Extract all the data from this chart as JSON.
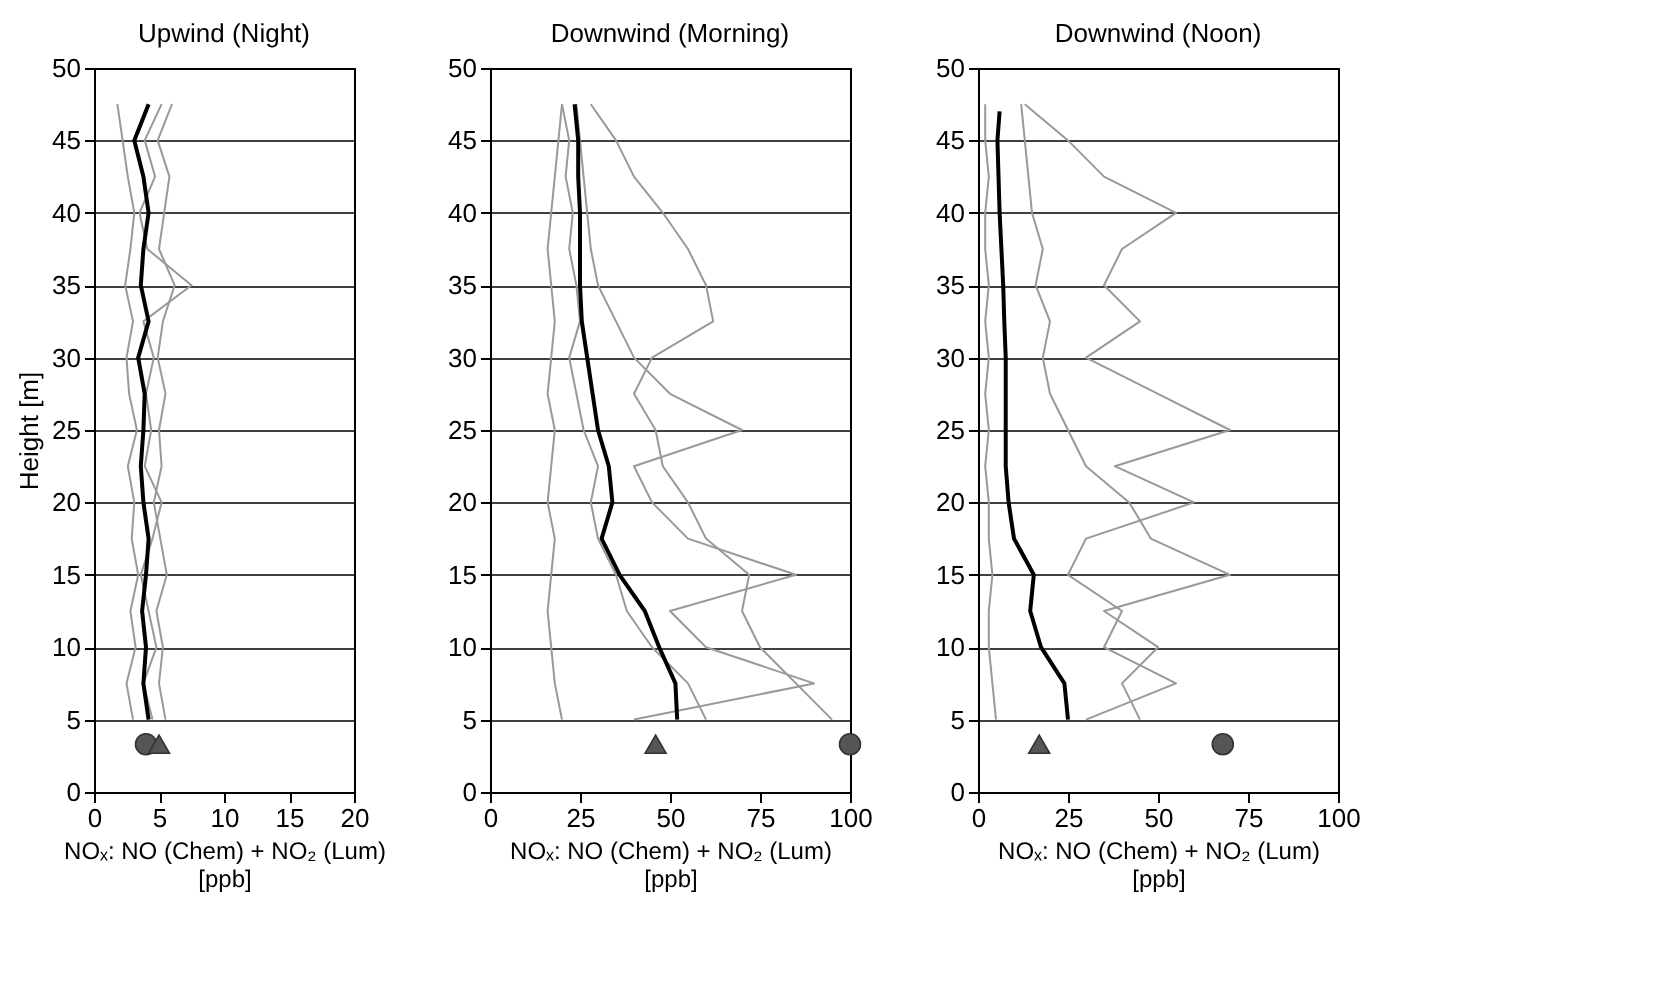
{
  "chart_data": [
    {
      "type": "line",
      "title": "Upwind (Night)",
      "xlabel": "NOₓ: NO (Chem) + NO₂ (Lum)\n[ppb]",
      "ylabel": "Height [m]",
      "xlim": [
        0,
        20
      ],
      "xticks": [
        0,
        5,
        10,
        15,
        20
      ],
      "ylim": [
        0,
        50
      ],
      "yticks": [
        0,
        5,
        10,
        15,
        20,
        25,
        30,
        35,
        40,
        45,
        50
      ],
      "grid": "y",
      "series": [
        {
          "color": "#999999",
          "x": [
            3.0,
            2.5,
            3.2,
            2.8,
            3.4,
            2.9,
            3.1,
            2.6,
            3.3,
            2.7,
            2.5,
            3.0,
            2.4,
            2.8,
            3.1,
            2.6,
            2.2,
            1.8
          ],
          "values": [
            5,
            7.5,
            10,
            12.5,
            15,
            17.5,
            20,
            22.5,
            25,
            27.5,
            30,
            32.5,
            35,
            37.5,
            40,
            42.5,
            45,
            47.5
          ]
        },
        {
          "color": "#999999",
          "x": [
            5.5,
            5.0,
            5.3,
            4.8,
            5.6,
            5.1,
            4.6,
            5.2,
            5.0,
            5.5,
            4.9,
            5.3,
            6.2,
            5.0,
            5.4,
            5.8,
            4.9,
            6.0
          ],
          "values": [
            5,
            7.5,
            10,
            12.5,
            15,
            17.5,
            20,
            22.5,
            25,
            27.5,
            30,
            32.5,
            35,
            37.5,
            40,
            42.5,
            45,
            47.5
          ]
        },
        {
          "color": "#999999",
          "x": [
            4.5,
            3.8,
            4.8,
            4.2,
            3.6,
            4.5,
            5.2,
            3.9,
            4.4,
            4.0,
            4.6,
            3.8,
            7.5,
            4.1,
            3.5,
            4.7,
            3.9,
            5.2
          ],
          "values": [
            5,
            7.5,
            10,
            12.5,
            15,
            17.5,
            20,
            22.5,
            25,
            27.5,
            30,
            32.5,
            35,
            37.5,
            40,
            42.5,
            45,
            47.5
          ]
        },
        {
          "color": "#000000",
          "x": [
            4.2,
            3.8,
            4.0,
            3.7,
            4.0,
            4.2,
            3.8,
            3.6,
            3.8,
            3.9,
            3.4,
            4.2,
            3.6,
            3.8,
            4.2,
            3.8,
            3.1,
            4.2
          ],
          "values": [
            5,
            7.5,
            10,
            12.5,
            15,
            17.5,
            20,
            22.5,
            25,
            27.5,
            30,
            32.5,
            35,
            37.5,
            40,
            42.5,
            45,
            47.5
          ]
        },
        {
          "type": "scatter",
          "marker": "circle",
          "color": "#555555",
          "x": [
            4.0
          ],
          "values": [
            3.3
          ]
        },
        {
          "type": "scatter",
          "marker": "triangle",
          "color": "#555555",
          "x": [
            5.0
          ],
          "values": [
            3.3
          ]
        }
      ]
    },
    {
      "type": "line",
      "title": "Downwind (Morning)",
      "xlabel": "NOₓ: NO (Chem) + NO₂ (Lum)\n[ppb]",
      "xlim": [
        0,
        100
      ],
      "xticks": [
        0,
        25,
        50,
        75,
        100
      ],
      "ylim": [
        0,
        50
      ],
      "yticks": [
        0,
        5,
        10,
        15,
        20,
        25,
        30,
        35,
        40,
        45,
        50
      ],
      "grid": "y",
      "series": [
        {
          "color": "#999999",
          "x": [
            20,
            18,
            17,
            16,
            17,
            18,
            16,
            17,
            18,
            16,
            17,
            18,
            17,
            16,
            17,
            18,
            19,
            20
          ],
          "values": [
            5,
            7.5,
            10,
            12.5,
            15,
            17.5,
            20,
            22.5,
            25,
            27.5,
            30,
            32.5,
            35,
            37.5,
            40,
            42.5,
            45,
            47.5
          ]
        },
        {
          "color": "#999999",
          "x": [
            60,
            55,
            45,
            38,
            35,
            30,
            28,
            30,
            26,
            24,
            22,
            25,
            24,
            22,
            23,
            21,
            22,
            20
          ],
          "values": [
            5,
            7.5,
            10,
            12.5,
            15,
            17.5,
            20,
            22.5,
            25,
            27.5,
            30,
            32.5,
            35,
            37.5,
            40,
            42.5,
            45,
            47.5
          ]
        },
        {
          "color": "#999999",
          "x": [
            95,
            85,
            75,
            70,
            72,
            60,
            55,
            48,
            46,
            40,
            45,
            62,
            60,
            55,
            48,
            40,
            35,
            28
          ],
          "values": [
            5,
            7.5,
            10,
            12.5,
            15,
            17.5,
            20,
            22.5,
            25,
            27.5,
            30,
            32.5,
            35,
            37.5,
            40,
            42.5,
            45,
            47.5
          ]
        },
        {
          "color": "#999999",
          "x": [
            40,
            90,
            60,
            50,
            85,
            55,
            45,
            40,
            70,
            50,
            40,
            35,
            30,
            28,
            27,
            26,
            25,
            24
          ],
          "values": [
            5,
            7.5,
            10,
            12.5,
            15,
            17.5,
            20,
            22.5,
            25,
            27.5,
            30,
            32.5,
            35,
            37.5,
            40,
            42.5,
            45,
            47.5
          ]
        },
        {
          "color": "#000000",
          "x": [
            52,
            51.5,
            47,
            43,
            36,
            31,
            34,
            33,
            30,
            28.5,
            27,
            25.5,
            25,
            25,
            25,
            24.5,
            24.5,
            23.5
          ],
          "values": [
            5,
            7.5,
            10,
            12.5,
            15,
            17.5,
            20,
            22.5,
            25,
            27.5,
            30,
            32.5,
            35,
            37.5,
            40,
            42.5,
            45,
            47.5
          ]
        },
        {
          "type": "scatter",
          "marker": "triangle",
          "color": "#555555",
          "x": [
            46
          ],
          "values": [
            3.3
          ]
        },
        {
          "type": "scatter",
          "marker": "circle",
          "color": "#555555",
          "x": [
            100
          ],
          "values": [
            3.3
          ]
        }
      ]
    },
    {
      "type": "line",
      "title": "Downwind (Noon)",
      "xlabel": "NOₓ: NO (Chem) + NO₂ (Lum)\n[ppb]",
      "xlim": [
        0,
        100
      ],
      "xticks": [
        0,
        25,
        50,
        75,
        100
      ],
      "ylim": [
        0,
        50
      ],
      "yticks": [
        0,
        5,
        10,
        15,
        20,
        25,
        30,
        35,
        40,
        45,
        50
      ],
      "grid": "y",
      "series": [
        {
          "color": "#999999",
          "x": [
            5,
            4,
            3,
            3,
            4,
            3,
            3,
            2,
            3,
            2,
            3,
            2,
            3,
            2,
            2,
            3,
            2,
            2
          ],
          "values": [
            5,
            7.5,
            10,
            12.5,
            15,
            17.5,
            20,
            22.5,
            25,
            27.5,
            30,
            32.5,
            35,
            37.5,
            40,
            42.5,
            45,
            47.5
          ]
        },
        {
          "color": "#999999",
          "x": [
            45,
            40,
            50,
            35,
            70,
            48,
            42,
            30,
            25,
            20,
            18,
            20,
            16,
            18,
            15,
            14,
            13,
            12
          ],
          "values": [
            5,
            7.5,
            10,
            12.5,
            15,
            17.5,
            20,
            22.5,
            25,
            27.5,
            30,
            32.5,
            35,
            37.5,
            40,
            42.5,
            45,
            47.5
          ]
        },
        {
          "color": "#999999",
          "x": [
            30,
            55,
            35,
            40,
            25,
            30,
            60,
            38,
            70,
            50,
            30,
            45,
            35,
            40,
            55,
            35,
            25,
            13
          ],
          "values": [
            5,
            7.5,
            10,
            12.5,
            15,
            17.5,
            20,
            22.5,
            25,
            27.5,
            30,
            32.5,
            35,
            37.5,
            40,
            42.5,
            45,
            47.5
          ]
        },
        {
          "color": "#000000",
          "x": [
            25,
            24,
            17.5,
            14.5,
            15.5,
            10,
            8.5,
            7.7,
            7.7,
            7.7,
            7.7,
            7.3,
            7,
            6.5,
            6,
            5.7,
            5.4,
            6
          ],
          "values": [
            5,
            7.5,
            10,
            12.5,
            15,
            17.5,
            20,
            22.5,
            25,
            27.5,
            30,
            32.5,
            35,
            37.5,
            40,
            42.5,
            45,
            47
          ]
        },
        {
          "type": "scatter",
          "marker": "triangle",
          "color": "#555555",
          "x": [
            17
          ],
          "values": [
            3.3
          ]
        },
        {
          "type": "scatter",
          "marker": "circle",
          "color": "#555555",
          "x": [
            68
          ],
          "values": [
            3.3
          ]
        }
      ]
    }
  ]
}
